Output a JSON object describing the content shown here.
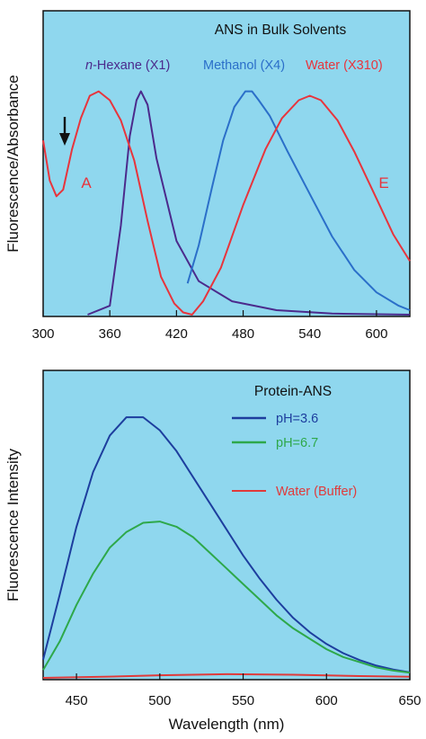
{
  "chart_data": [
    {
      "type": "line",
      "title": "ANS in Bulk Solvents",
      "ylabel": "Fluorescence/Absorbance",
      "xlabel": "",
      "xlim": [
        300,
        630
      ],
      "ylim": [
        0,
        1.0
      ],
      "xticks": [
        "300",
        "360",
        "420",
        "480",
        "540",
        "600"
      ],
      "grid": false,
      "legend_position": "top",
      "background": "#8fd7ee",
      "annotations": [
        "A",
        "E"
      ],
      "series": [
        {
          "name": "n-Hexane (X1)",
          "name_prefix": "n",
          "name_rest": "-Hexane (X1)",
          "color": "#4b2a8c",
          "x": [
            340,
            360,
            370,
            378,
            384,
            388,
            394,
            402,
            420,
            440,
            470,
            510,
            560,
            630
          ],
          "y": [
            0.0,
            0.04,
            0.4,
            0.8,
            0.96,
            1.0,
            0.94,
            0.7,
            0.33,
            0.15,
            0.06,
            0.02,
            0.005,
            0.0
          ]
        },
        {
          "name": "Methanol (X4)",
          "color": "#2b6fc9",
          "x": [
            430,
            440,
            452,
            462,
            472,
            482,
            488,
            494,
            504,
            520,
            540,
            560,
            580,
            600,
            620,
            630
          ],
          "y": [
            0.14,
            0.31,
            0.57,
            0.78,
            0.93,
            1.0,
            1.0,
            0.96,
            0.89,
            0.73,
            0.54,
            0.35,
            0.2,
            0.1,
            0.04,
            0.02
          ]
        },
        {
          "name": "Water (X310)",
          "color": "#e8343c",
          "x": [
            300,
            306,
            312,
            318,
            326,
            334,
            342,
            350,
            360,
            370,
            382,
            394,
            406,
            418,
            426,
            434,
            444,
            460,
            480,
            500,
            515,
            530,
            540,
            550,
            565,
            580,
            600,
            615,
            630
          ],
          "y": [
            0.78,
            0.6,
            0.53,
            0.56,
            0.74,
            0.88,
            0.98,
            1.0,
            0.96,
            0.87,
            0.69,
            0.42,
            0.17,
            0.05,
            0.01,
            0.0,
            0.06,
            0.21,
            0.49,
            0.74,
            0.88,
            0.96,
            0.98,
            0.96,
            0.87,
            0.73,
            0.52,
            0.36,
            0.24
          ]
        }
      ]
    },
    {
      "type": "line",
      "title": "",
      "xlabel": "Wavelength (nm)",
      "ylabel": "Fluorescence Intensity",
      "xlim": [
        430,
        650
      ],
      "ylim": [
        0,
        1.05
      ],
      "xticks": [
        "450",
        "500",
        "550",
        "600",
        "650"
      ],
      "grid": false,
      "legend_title": "Protein-ANS",
      "legend_position": "top-right",
      "background": "#8fd7ee",
      "series": [
        {
          "name": "pH=3.6",
          "color": "#1d3e9e",
          "x": [
            430,
            440,
            450,
            460,
            470,
            480,
            490,
            500,
            510,
            520,
            530,
            540,
            550,
            560,
            570,
            580,
            590,
            600,
            610,
            620,
            630,
            640,
            650
          ],
          "y": [
            0.07,
            0.32,
            0.58,
            0.79,
            0.93,
            1.0,
            1.0,
            0.95,
            0.87,
            0.77,
            0.67,
            0.57,
            0.47,
            0.38,
            0.3,
            0.23,
            0.175,
            0.13,
            0.095,
            0.068,
            0.047,
            0.032,
            0.021
          ]
        },
        {
          "name": "pH=6.7",
          "color": "#2ea84a",
          "x": [
            430,
            440,
            450,
            460,
            470,
            480,
            490,
            500,
            510,
            520,
            530,
            540,
            550,
            560,
            570,
            580,
            590,
            600,
            610,
            620,
            630,
            640,
            650
          ],
          "y": [
            0.03,
            0.14,
            0.28,
            0.4,
            0.5,
            0.56,
            0.595,
            0.6,
            0.58,
            0.54,
            0.48,
            0.42,
            0.36,
            0.3,
            0.24,
            0.19,
            0.15,
            0.11,
            0.08,
            0.06,
            0.04,
            0.028,
            0.02
          ]
        },
        {
          "name": "Water (Buffer)",
          "color": "#e03a3a",
          "x": [
            430,
            470,
            500,
            540,
            580,
            620,
            650
          ],
          "y": [
            0.0,
            0.005,
            0.01,
            0.014,
            0.012,
            0.007,
            0.004
          ]
        }
      ]
    }
  ]
}
